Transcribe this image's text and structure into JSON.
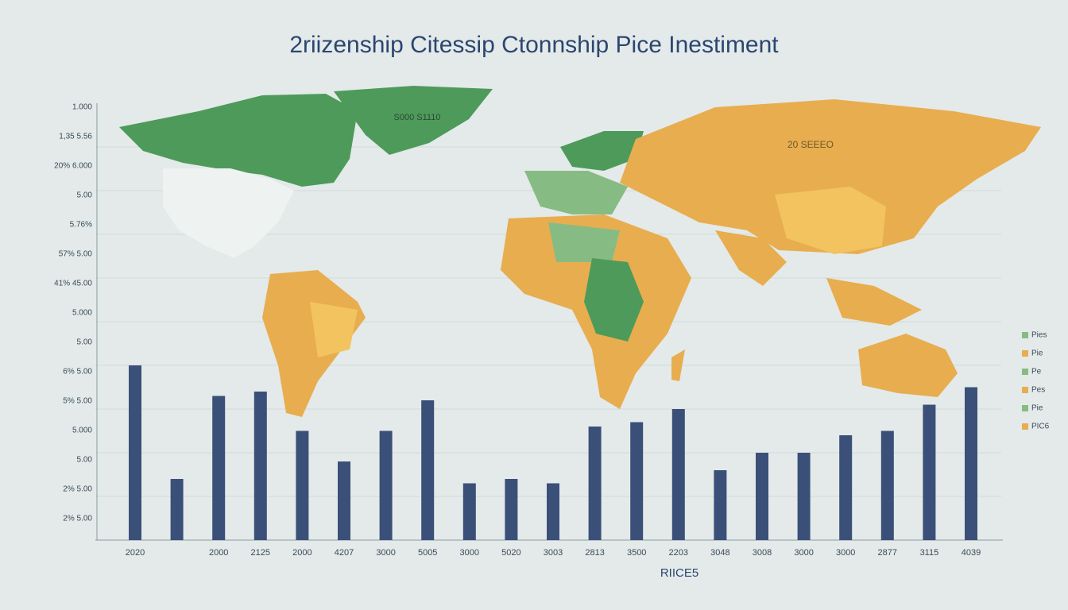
{
  "chart_data": {
    "type": "bar",
    "title": "2riizenship Citessip Ctonnship Pice Inestiment",
    "x_label": "RIICE5",
    "map_labels": [
      "S000 S1110",
      "20 SEEEO"
    ],
    "legend_texts": [
      "Pies",
      "Pie",
      "Pe",
      "Pes",
      "Pie",
      "PIC6"
    ],
    "y_axis_texts": [
      "1.000",
      "1,35 5.56",
      "20% 6.000",
      "5.00",
      "5.76%",
      "57% 5.00",
      "41% 45.00",
      "5.000",
      "5.00",
      "6% 5.00",
      "5% 5.00",
      "5.000",
      "5.00",
      "2% 5.00",
      "2% 5.00"
    ],
    "categories": [
      "2020",
      null,
      "2000",
      "2125",
      "2000",
      "4207",
      "3000",
      "5005",
      "3000",
      "5020",
      "3003",
      "2813",
      "3500",
      "2203",
      "3048",
      "3008",
      "3000",
      "3000",
      "2877",
      "3115",
      "4039"
    ],
    "values": [
      40,
      14,
      33,
      34,
      25,
      18,
      25,
      32,
      13,
      14,
      13,
      26,
      27,
      30,
      16,
      20,
      20,
      24,
      25,
      31,
      35
    ],
    "color": "#3a5078",
    "ylim": [
      0,
      100
    ]
  }
}
